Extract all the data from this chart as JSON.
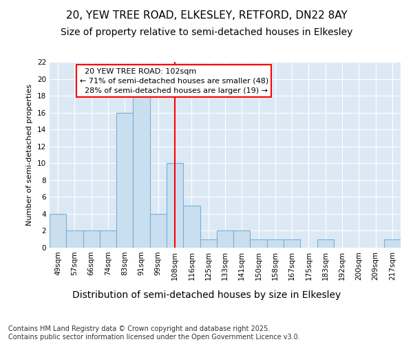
{
  "title1": "20, YEW TREE ROAD, ELKESLEY, RETFORD, DN22 8AY",
  "title2": "Size of property relative to semi-detached houses in Elkesley",
  "xlabel": "Distribution of semi-detached houses by size in Elkesley",
  "ylabel": "Number of semi-detached properties",
  "categories": [
    "49sqm",
    "57sqm",
    "66sqm",
    "74sqm",
    "83sqm",
    "91sqm",
    "99sqm",
    "108sqm",
    "116sqm",
    "125sqm",
    "133sqm",
    "141sqm",
    "150sqm",
    "158sqm",
    "167sqm",
    "175sqm",
    "183sqm",
    "192sqm",
    "200sqm",
    "209sqm",
    "217sqm"
  ],
  "values": [
    4,
    2,
    2,
    2,
    16,
    18,
    4,
    10,
    5,
    1,
    2,
    2,
    1,
    1,
    1,
    0,
    1,
    0,
    0,
    0,
    1
  ],
  "bar_color": "#c9dff0",
  "bar_edge_color": "#7aadd4",
  "property_line_index": 7,
  "property_label": "20 YEW TREE ROAD: 102sqm",
  "pct_smaller": "71%",
  "pct_smaller_n": 48,
  "pct_larger": "28%",
  "pct_larger_n": 19,
  "annotation_type": "semi-detached",
  "ylim": [
    0,
    22
  ],
  "yticks": [
    0,
    2,
    4,
    6,
    8,
    10,
    12,
    14,
    16,
    18,
    20,
    22
  ],
  "bg_color": "#dce9f5",
  "grid_color": "#ffffff",
  "footer": "Contains HM Land Registry data © Crown copyright and database right 2025.\nContains public sector information licensed under the Open Government Licence v3.0.",
  "title_fontsize": 11,
  "subtitle_fontsize": 10,
  "xlabel_fontsize": 10,
  "axis_label_fontsize": 8,
  "tick_fontsize": 7.5,
  "annotation_fontsize": 8,
  "footer_fontsize": 7
}
